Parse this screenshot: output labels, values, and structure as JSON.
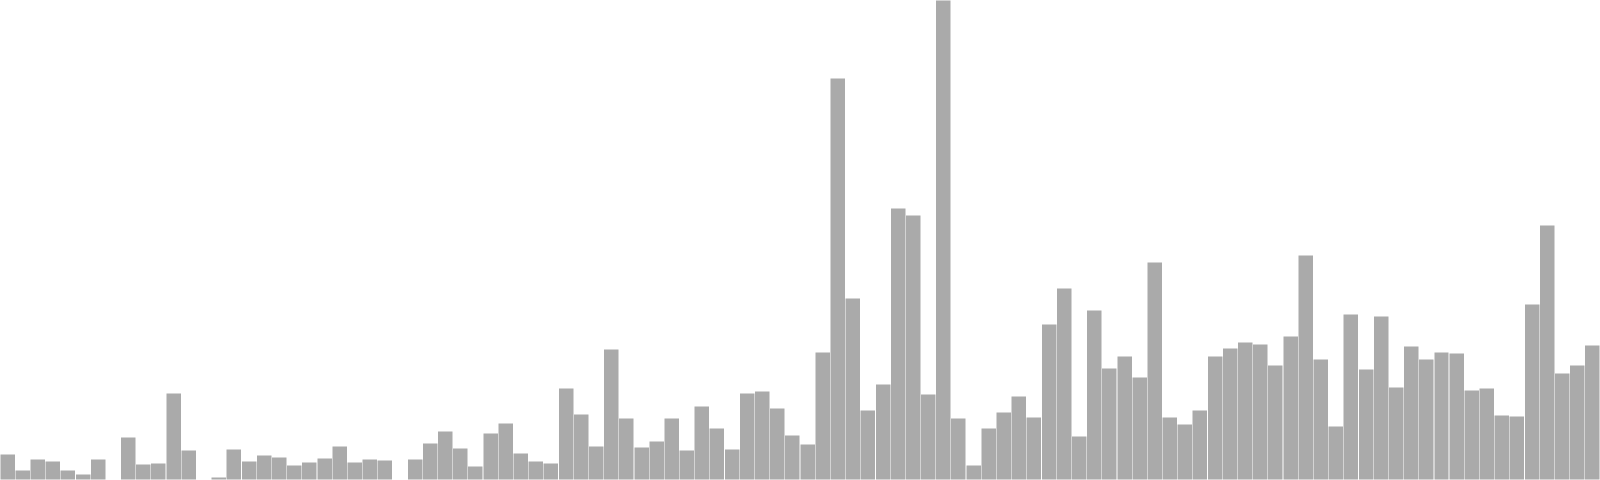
{
  "chart_data": {
    "type": "bar",
    "bar_color": "#aaaaaa",
    "edge_color": "#ffffff",
    "ylim": [
      0,
      480
    ],
    "values": [
      26,
      10,
      21,
      19,
      10,
      6,
      21,
      1,
      43,
      16,
      17,
      87,
      30,
      0,
      3,
      31,
      19,
      25,
      23,
      15,
      18,
      22,
      34,
      18,
      21,
      20,
      0,
      21,
      37,
      49,
      32,
      14,
      47,
      57,
      27,
      19,
      17,
      92,
      66,
      34,
      131,
      62,
      33,
      39,
      62,
      30,
      74,
      52,
      31,
      87,
      89,
      72,
      45,
      36,
      128,
      402,
      182,
      70,
      96,
      272,
      265,
      86,
      480,
      62,
      15,
      52,
      68,
      84,
      63,
      156,
      192,
      44,
      170,
      112,
      124,
      103,
      218,
      63,
      56,
      70,
      124,
      132,
      138,
      136,
      115,
      144,
      225,
      121,
      54,
      166,
      111,
      164,
      93,
      134,
      121,
      128,
      127,
      90,
      92,
      65,
      64,
      176,
      255,
      107,
      115,
      135
    ]
  }
}
